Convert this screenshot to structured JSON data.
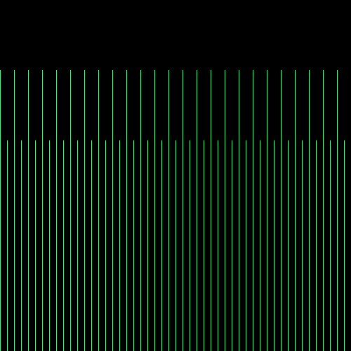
{
  "colors": {
    "background": "#000000",
    "line": "#33ee88"
  }
}
